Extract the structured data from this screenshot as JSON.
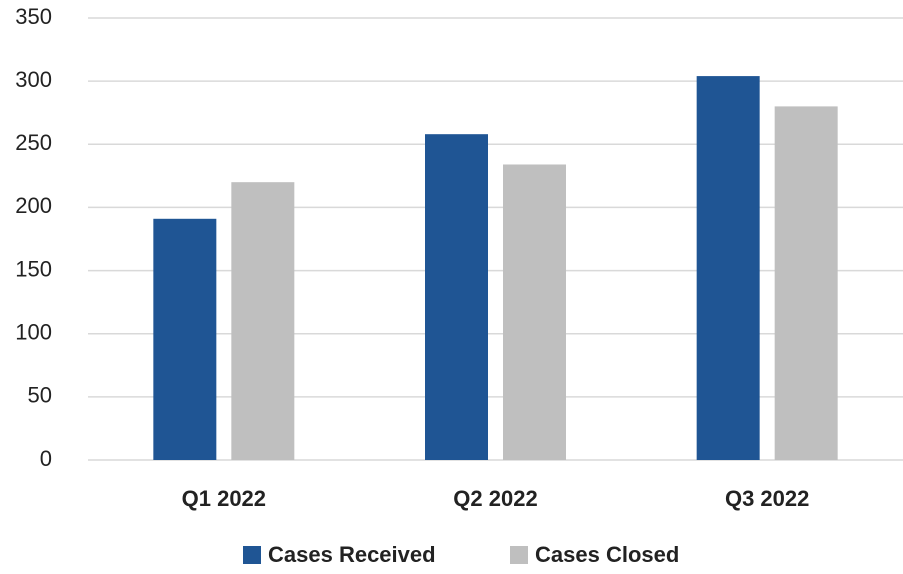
{
  "chart_data": {
    "type": "bar",
    "categories": [
      "Q1 2022",
      "Q2 2022",
      "Q3 2022"
    ],
    "series": [
      {
        "name": "Cases Received",
        "color": "#1f5594",
        "values": [
          191,
          258,
          304
        ]
      },
      {
        "name": "Cases Closed",
        "color": "#bfbfbf",
        "values": [
          220,
          234,
          280
        ]
      }
    ],
    "ylim": [
      0,
      350
    ],
    "yticks": [
      0,
      50,
      100,
      150,
      200,
      250,
      300,
      350
    ],
    "grid": true,
    "legend": "bottom"
  }
}
